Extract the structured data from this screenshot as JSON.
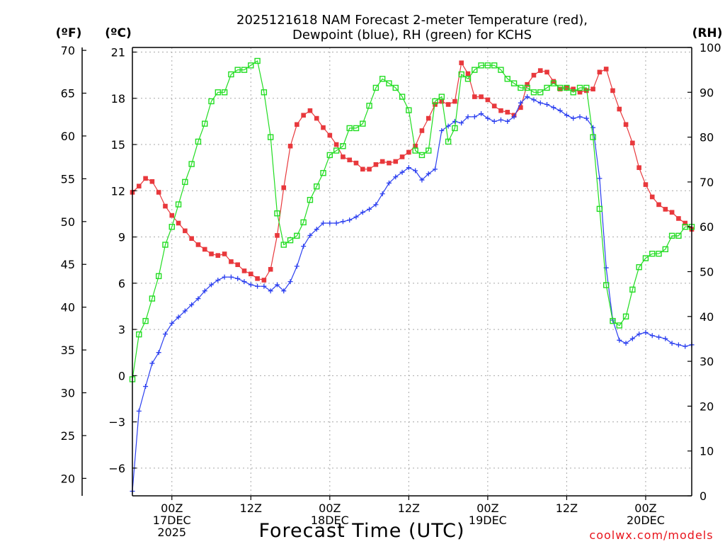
{
  "chart_data": {
    "type": "line",
    "title_line1": "2025121618 NAM Forecast 2-meter Temperature (red),",
    "title_line2": "Dewpoint (blue), RH (green) for KCHS",
    "units": {
      "f": "(ºF)",
      "c": "(ºC)",
      "rh": "(RH)"
    },
    "xlabel": "Forecast Time (UTC)",
    "credit": "coolwx.com/models",
    "x_range_hours": [
      0,
      85
    ],
    "y_c_range": [
      -7.8,
      21.3
    ],
    "y_rh_range": [
      0,
      100
    ],
    "grid": true,
    "f_ticks": [
      "70",
      "65",
      "60",
      "55",
      "50",
      "45",
      "40",
      "35",
      "30",
      "25",
      "20"
    ],
    "c_ticks": [
      "21",
      "18",
      "15",
      "12",
      "9",
      "6",
      "3",
      "0",
      "−3",
      "−6"
    ],
    "rh_ticks": [
      "100",
      "90",
      "80",
      "70",
      "60",
      "50",
      "40",
      "30",
      "20",
      "10",
      "0"
    ],
    "x_ticks": [
      {
        "hour": 6,
        "lines": [
          "00Z",
          "17DEC",
          "2025"
        ]
      },
      {
        "hour": 18,
        "lines": [
          "12Z"
        ]
      },
      {
        "hour": 30,
        "lines": [
          "00Z",
          "18DEC"
        ]
      },
      {
        "hour": 42,
        "lines": [
          "12Z"
        ]
      },
      {
        "hour": 54,
        "lines": [
          "00Z",
          "19DEC"
        ]
      },
      {
        "hour": 66,
        "lines": [
          "12Z"
        ]
      },
      {
        "hour": 78,
        "lines": [
          "00Z",
          "20DEC"
        ]
      }
    ],
    "series": [
      {
        "name": "Temperature",
        "unit": "C",
        "color": "#e8383c",
        "marker": "square-filled",
        "points": [
          [
            0,
            11.9
          ],
          [
            1,
            12.3
          ],
          [
            2,
            12.8
          ],
          [
            3,
            12.6
          ],
          [
            4,
            11.9
          ],
          [
            5,
            11.0
          ],
          [
            6,
            10.4
          ],
          [
            7,
            9.9
          ],
          [
            8,
            9.4
          ],
          [
            9,
            8.9
          ],
          [
            10,
            8.5
          ],
          [
            11,
            8.2
          ],
          [
            12,
            7.9
          ],
          [
            13,
            7.8
          ],
          [
            14,
            7.9
          ],
          [
            15,
            7.4
          ],
          [
            16,
            7.2
          ],
          [
            17,
            6.8
          ],
          [
            18,
            6.6
          ],
          [
            19,
            6.3
          ],
          [
            20,
            6.2
          ],
          [
            21,
            6.9
          ],
          [
            22,
            9.1
          ],
          [
            23,
            12.2
          ],
          [
            24,
            14.9
          ],
          [
            25,
            16.3
          ],
          [
            26,
            16.9
          ],
          [
            27,
            17.2
          ],
          [
            28,
            16.7
          ],
          [
            29,
            16.1
          ],
          [
            30,
            15.6
          ],
          [
            31,
            15.0
          ],
          [
            32,
            14.2
          ],
          [
            33,
            14.0
          ],
          [
            34,
            13.8
          ],
          [
            35,
            13.4
          ],
          [
            36,
            13.4
          ],
          [
            37,
            13.7
          ],
          [
            38,
            13.9
          ],
          [
            39,
            13.8
          ],
          [
            40,
            13.9
          ],
          [
            41,
            14.2
          ],
          [
            42,
            14.5
          ],
          [
            43,
            14.9
          ],
          [
            44,
            15.9
          ],
          [
            45,
            16.7
          ],
          [
            46,
            17.6
          ],
          [
            47,
            17.8
          ],
          [
            48,
            17.6
          ],
          [
            49,
            17.8
          ],
          [
            50,
            20.3
          ],
          [
            51,
            19.6
          ],
          [
            52,
            18.1
          ],
          [
            53,
            18.1
          ],
          [
            54,
            17.9
          ],
          [
            55,
            17.5
          ],
          [
            56,
            17.2
          ],
          [
            57,
            17.1
          ],
          [
            58,
            16.9
          ],
          [
            59,
            17.4
          ],
          [
            60,
            18.9
          ],
          [
            61,
            19.5
          ],
          [
            62,
            19.8
          ],
          [
            63,
            19.7
          ],
          [
            64,
            19.1
          ],
          [
            65,
            18.6
          ],
          [
            66,
            18.7
          ],
          [
            67,
            18.6
          ],
          [
            68,
            18.4
          ],
          [
            69,
            18.5
          ],
          [
            70,
            18.6
          ],
          [
            71,
            19.7
          ],
          [
            72,
            19.9
          ],
          [
            73,
            18.5
          ],
          [
            74,
            17.3
          ],
          [
            75,
            16.3
          ],
          [
            76,
            15.1
          ],
          [
            77,
            13.5
          ],
          [
            78,
            12.4
          ],
          [
            79,
            11.6
          ],
          [
            80,
            11.1
          ],
          [
            81,
            10.8
          ],
          [
            82,
            10.6
          ],
          [
            83,
            10.2
          ],
          [
            84,
            9.9
          ],
          [
            85,
            9.5
          ]
        ]
      },
      {
        "name": "Dewpoint",
        "unit": "C",
        "color": "#2b3ff0",
        "marker": "plus",
        "points": [
          [
            0,
            -7.5
          ],
          [
            1,
            -2.3
          ],
          [
            2,
            -0.7
          ],
          [
            3,
            0.8
          ],
          [
            4,
            1.5
          ],
          [
            5,
            2.7
          ],
          [
            6,
            3.4
          ],
          [
            7,
            3.8
          ],
          [
            8,
            4.2
          ],
          [
            9,
            4.6
          ],
          [
            10,
            5.0
          ],
          [
            11,
            5.5
          ],
          [
            12,
            5.9
          ],
          [
            13,
            6.2
          ],
          [
            14,
            6.4
          ],
          [
            15,
            6.4
          ],
          [
            16,
            6.3
          ],
          [
            17,
            6.1
          ],
          [
            18,
            5.9
          ],
          [
            19,
            5.8
          ],
          [
            20,
            5.8
          ],
          [
            21,
            5.5
          ],
          [
            22,
            5.9
          ],
          [
            23,
            5.5
          ],
          [
            24,
            6.1
          ],
          [
            25,
            7.1
          ],
          [
            26,
            8.4
          ],
          [
            27,
            9.1
          ],
          [
            28,
            9.5
          ],
          [
            29,
            9.9
          ],
          [
            30,
            9.9
          ],
          [
            31,
            9.9
          ],
          [
            32,
            10.0
          ],
          [
            33,
            10.1
          ],
          [
            34,
            10.3
          ],
          [
            35,
            10.6
          ],
          [
            36,
            10.8
          ],
          [
            37,
            11.1
          ],
          [
            38,
            11.8
          ],
          [
            39,
            12.5
          ],
          [
            40,
            12.9
          ],
          [
            41,
            13.2
          ],
          [
            42,
            13.5
          ],
          [
            43,
            13.3
          ],
          [
            44,
            12.7
          ],
          [
            45,
            13.1
          ],
          [
            46,
            13.4
          ],
          [
            47,
            15.9
          ],
          [
            48,
            16.2
          ],
          [
            49,
            16.5
          ],
          [
            50,
            16.4
          ],
          [
            51,
            16.8
          ],
          [
            52,
            16.8
          ],
          [
            53,
            17.0
          ],
          [
            54,
            16.7
          ],
          [
            55,
            16.5
          ],
          [
            56,
            16.6
          ],
          [
            57,
            16.5
          ],
          [
            58,
            16.8
          ],
          [
            59,
            17.7
          ],
          [
            60,
            18.1
          ],
          [
            61,
            17.9
          ],
          [
            62,
            17.7
          ],
          [
            63,
            17.6
          ],
          [
            64,
            17.4
          ],
          [
            65,
            17.2
          ],
          [
            66,
            16.9
          ],
          [
            67,
            16.7
          ],
          [
            68,
            16.8
          ],
          [
            69,
            16.7
          ],
          [
            70,
            16.1
          ],
          [
            71,
            12.8
          ],
          [
            72,
            7.0
          ],
          [
            73,
            3.6
          ],
          [
            74,
            2.3
          ],
          [
            75,
            2.1
          ],
          [
            76,
            2.4
          ],
          [
            77,
            2.7
          ],
          [
            78,
            2.8
          ],
          [
            79,
            2.6
          ],
          [
            80,
            2.5
          ],
          [
            81,
            2.4
          ],
          [
            82,
            2.1
          ],
          [
            83,
            2.0
          ],
          [
            84,
            1.9
          ],
          [
            85,
            2.0
          ]
        ]
      },
      {
        "name": "RH",
        "unit": "%",
        "color": "#22dd22",
        "marker": "square-open",
        "points": [
          [
            0,
            26
          ],
          [
            1,
            36
          ],
          [
            2,
            39
          ],
          [
            3,
            44
          ],
          [
            4,
            49
          ],
          [
            5,
            56
          ],
          [
            6,
            60
          ],
          [
            7,
            65
          ],
          [
            8,
            70
          ],
          [
            9,
            74
          ],
          [
            10,
            79
          ],
          [
            11,
            83
          ],
          [
            12,
            88
          ],
          [
            13,
            90
          ],
          [
            14,
            90
          ],
          [
            15,
            94
          ],
          [
            16,
            95
          ],
          [
            17,
            95
          ],
          [
            18,
            96
          ],
          [
            19,
            97
          ],
          [
            20,
            90
          ],
          [
            21,
            80
          ],
          [
            22,
            63
          ],
          [
            23,
            56
          ],
          [
            24,
            57
          ],
          [
            25,
            58
          ],
          [
            26,
            61
          ],
          [
            27,
            66
          ],
          [
            28,
            69
          ],
          [
            29,
            72
          ],
          [
            30,
            76
          ],
          [
            31,
            77
          ],
          [
            32,
            78
          ],
          [
            33,
            82
          ],
          [
            34,
            82
          ],
          [
            35,
            83
          ],
          [
            36,
            87
          ],
          [
            37,
            91
          ],
          [
            38,
            93
          ],
          [
            39,
            92
          ],
          [
            40,
            91
          ],
          [
            41,
            89
          ],
          [
            42,
            86
          ],
          [
            43,
            77
          ],
          [
            44,
            76
          ],
          [
            45,
            77
          ],
          [
            46,
            88
          ],
          [
            47,
            89
          ],
          [
            48,
            79
          ],
          [
            49,
            82
          ],
          [
            50,
            94
          ],
          [
            51,
            93
          ],
          [
            52,
            95
          ],
          [
            53,
            96
          ],
          [
            54,
            96
          ],
          [
            55,
            96
          ],
          [
            56,
            95
          ],
          [
            57,
            93
          ],
          [
            58,
            92
          ],
          [
            59,
            91
          ],
          [
            60,
            91
          ],
          [
            61,
            90
          ],
          [
            62,
            90
          ],
          [
            63,
            91
          ],
          [
            64,
            92
          ],
          [
            65,
            91
          ],
          [
            66,
            91
          ],
          [
            67,
            90
          ],
          [
            68,
            91
          ],
          [
            69,
            91
          ],
          [
            70,
            80
          ],
          [
            71,
            64
          ],
          [
            72,
            47
          ],
          [
            73,
            39
          ],
          [
            74,
            38
          ],
          [
            75,
            40
          ],
          [
            76,
            46
          ],
          [
            77,
            51
          ],
          [
            78,
            53
          ],
          [
            79,
            54
          ],
          [
            80,
            54
          ],
          [
            81,
            55
          ],
          [
            82,
            58
          ],
          [
            83,
            58
          ],
          [
            84,
            60
          ],
          [
            85,
            60
          ]
        ]
      }
    ]
  }
}
